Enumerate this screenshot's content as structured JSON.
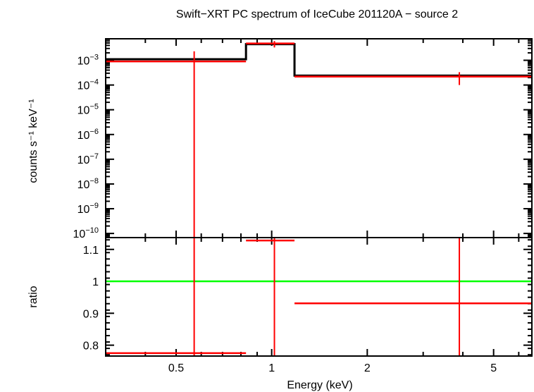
{
  "chart_data": [
    {
      "type": "line",
      "title": "Swift−XRT PC spectrum of IceCube 201120A − source 2",
      "ylabel": "counts s⁻¹ keV⁻¹",
      "xscale": "log",
      "yscale": "log",
      "xlim": [
        0.3,
        6.6
      ],
      "ylim": [
        6.8e-11,
        0.0074
      ],
      "yticks": [
        0.001,
        0.0001,
        1e-05,
        1e-06,
        1e-07,
        1e-08,
        1e-09,
        1e-10
      ],
      "ytick_labels": [
        {
          "base": "10",
          "exp": "−3"
        },
        {
          "base": "10",
          "exp": "−4"
        },
        {
          "base": "10",
          "exp": "−5"
        },
        {
          "base": "10",
          "exp": "−6"
        },
        {
          "base": "10",
          "exp": "−7"
        },
        {
          "base": "10",
          "exp": "−8"
        },
        {
          "base": "10",
          "exp": "−9"
        },
        {
          "base": "10",
          "exp": "−10"
        }
      ],
      "data": [
        {
          "x_lo": 0.3,
          "x_hi": 0.83,
          "x": 0.57,
          "y": 0.0009,
          "y_lo": 1e-12,
          "y_hi": 0.0023
        },
        {
          "x_lo": 0.83,
          "x_hi": 1.18,
          "x": 1.02,
          "y": 0.0048,
          "y_lo": 0.0033,
          "y_hi": 0.006
        },
        {
          "x_lo": 1.18,
          "x_hi": 6.6,
          "x": 3.9,
          "y": 0.00022,
          "y_lo": 0.0001,
          "y_hi": 0.00033
        }
      ],
      "model": [
        0.0011,
        0.0045,
        0.00024
      ],
      "colors": {
        "data": "#ff0000",
        "model": "#000000"
      }
    },
    {
      "type": "line",
      "xlabel": "Energy (keV)",
      "ylabel": "ratio",
      "xscale": "log",
      "xlim": [
        0.3,
        6.6
      ],
      "ylim": [
        0.766,
        1.137
      ],
      "xticks": [
        0.5,
        1,
        2,
        5
      ],
      "xtick_labels": [
        "0.5",
        "1",
        "2",
        "5"
      ],
      "yticks": [
        0.8,
        0.9,
        1,
        1.1
      ],
      "ytick_labels": [
        "0.8",
        "0.9",
        "1",
        "1.1"
      ],
      "data": [
        {
          "x_lo": 0.3,
          "x_hi": 0.83,
          "x": 0.57,
          "y": 0.775,
          "y_lo": 0.5,
          "y_hi": 1.5
        },
        {
          "x_lo": 0.83,
          "x_hi": 1.18,
          "x": 1.02,
          "y": 1.128,
          "y_lo": 0.7,
          "y_hi": 1.5
        },
        {
          "x_lo": 1.18,
          "x_hi": 6.6,
          "x": 3.9,
          "y": 0.931,
          "y_lo": 0.5,
          "y_hi": 1.5
        }
      ],
      "reference_line": 1,
      "colors": {
        "data": "#ff0000",
        "reference": "#00ff00"
      }
    }
  ]
}
